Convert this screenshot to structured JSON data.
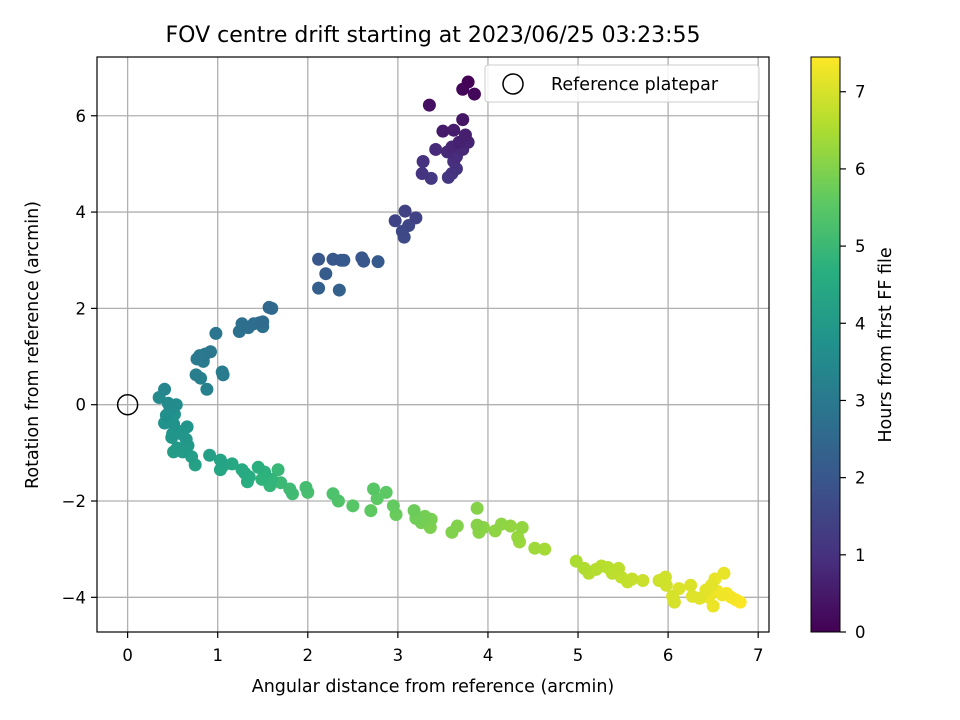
{
  "chart_data": {
    "type": "scatter",
    "title": "FOV centre drift starting at 2023/06/25 03:23:55",
    "xlabel": "Angular distance from reference (arcmin)",
    "ylabel": "Rotation from reference (arcmin)",
    "xlim": [
      -0.34,
      7.12
    ],
    "ylim": [
      -4.72,
      7.22
    ],
    "xticks": [
      0,
      1,
      2,
      3,
      4,
      5,
      6,
      7
    ],
    "yticks": [
      -4,
      -2,
      0,
      2,
      4,
      6
    ],
    "grid": true,
    "legend": {
      "position": "top-right",
      "entries": [
        "Reference platepar"
      ]
    },
    "reference_point": {
      "x": 0,
      "y": 0,
      "label": "Reference platepar"
    },
    "colorbar": {
      "label": "Hours from first FF file",
      "colormap": "viridis",
      "range": [
        0,
        7.45
      ],
      "ticks": [
        0,
        1,
        2,
        3,
        4,
        5,
        6,
        7
      ]
    },
    "points": [
      {
        "x": 3.78,
        "y": 6.7,
        "c": 0.05
      },
      {
        "x": 3.72,
        "y": 6.55,
        "c": 0.1
      },
      {
        "x": 3.85,
        "y": 6.45,
        "c": 0.15
      },
      {
        "x": 3.35,
        "y": 6.22,
        "c": 0.3
      },
      {
        "x": 3.72,
        "y": 5.92,
        "c": 0.4
      },
      {
        "x": 3.5,
        "y": 5.68,
        "c": 0.5
      },
      {
        "x": 3.62,
        "y": 5.7,
        "c": 0.55
      },
      {
        "x": 3.75,
        "y": 5.6,
        "c": 0.6
      },
      {
        "x": 3.68,
        "y": 5.45,
        "c": 0.65
      },
      {
        "x": 3.78,
        "y": 5.45,
        "c": 0.7
      },
      {
        "x": 3.6,
        "y": 5.35,
        "c": 0.75
      },
      {
        "x": 3.72,
        "y": 5.3,
        "c": 0.8
      },
      {
        "x": 3.55,
        "y": 5.25,
        "c": 0.85
      },
      {
        "x": 3.65,
        "y": 5.15,
        "c": 0.9
      },
      {
        "x": 3.42,
        "y": 5.3,
        "c": 0.85
      },
      {
        "x": 3.62,
        "y": 5.05,
        "c": 0.95
      },
      {
        "x": 3.28,
        "y": 5.05,
        "c": 1.0
      },
      {
        "x": 3.65,
        "y": 4.9,
        "c": 1.05
      },
      {
        "x": 3.6,
        "y": 4.8,
        "c": 1.1
      },
      {
        "x": 3.27,
        "y": 4.8,
        "c": 1.1
      },
      {
        "x": 3.56,
        "y": 4.72,
        "c": 1.15
      },
      {
        "x": 3.37,
        "y": 4.7,
        "c": 1.2
      },
      {
        "x": 3.08,
        "y": 4.02,
        "c": 1.4
      },
      {
        "x": 3.2,
        "y": 3.88,
        "c": 1.45
      },
      {
        "x": 2.97,
        "y": 3.82,
        "c": 1.5
      },
      {
        "x": 3.12,
        "y": 3.72,
        "c": 1.55
      },
      {
        "x": 3.05,
        "y": 3.6,
        "c": 1.6
      },
      {
        "x": 3.07,
        "y": 3.48,
        "c": 1.65
      },
      {
        "x": 2.12,
        "y": 3.02,
        "c": 2.0
      },
      {
        "x": 2.28,
        "y": 3.02,
        "c": 2.05
      },
      {
        "x": 2.37,
        "y": 3.0,
        "c": 2.1
      },
      {
        "x": 2.4,
        "y": 3.0,
        "c": 2.1
      },
      {
        "x": 2.6,
        "y": 3.05,
        "c": 2.0
      },
      {
        "x": 2.62,
        "y": 2.98,
        "c": 2.05
      },
      {
        "x": 2.78,
        "y": 2.97,
        "c": 2.1
      },
      {
        "x": 2.2,
        "y": 2.72,
        "c": 2.15
      },
      {
        "x": 2.12,
        "y": 2.42,
        "c": 2.25
      },
      {
        "x": 2.35,
        "y": 2.38,
        "c": 2.3
      },
      {
        "x": 1.57,
        "y": 2.02,
        "c": 2.5
      },
      {
        "x": 1.6,
        "y": 2.0,
        "c": 2.55
      },
      {
        "x": 1.5,
        "y": 1.72,
        "c": 2.6
      },
      {
        "x": 1.46,
        "y": 1.7,
        "c": 2.65
      },
      {
        "x": 1.4,
        "y": 1.68,
        "c": 2.65
      },
      {
        "x": 1.27,
        "y": 1.68,
        "c": 2.7
      },
      {
        "x": 1.34,
        "y": 1.6,
        "c": 2.7
      },
      {
        "x": 1.5,
        "y": 1.62,
        "c": 2.75
      },
      {
        "x": 1.24,
        "y": 1.52,
        "c": 2.8
      },
      {
        "x": 0.98,
        "y": 1.48,
        "c": 2.9
      },
      {
        "x": 0.92,
        "y": 1.1,
        "c": 2.95
      },
      {
        "x": 0.86,
        "y": 1.05,
        "c": 3.0
      },
      {
        "x": 0.8,
        "y": 1.02,
        "c": 3.0
      },
      {
        "x": 0.77,
        "y": 0.95,
        "c": 3.05
      },
      {
        "x": 0.84,
        "y": 0.9,
        "c": 3.05
      },
      {
        "x": 1.05,
        "y": 0.68,
        "c": 3.1
      },
      {
        "x": 1.06,
        "y": 0.62,
        "c": 3.1
      },
      {
        "x": 0.76,
        "y": 0.62,
        "c": 3.15
      },
      {
        "x": 0.81,
        "y": 0.55,
        "c": 3.2
      },
      {
        "x": 0.88,
        "y": 0.32,
        "c": 3.25
      },
      {
        "x": 0.41,
        "y": 0.32,
        "c": 3.4
      },
      {
        "x": 0.35,
        "y": 0.15,
        "c": 3.5
      },
      {
        "x": 0.45,
        "y": 0.03,
        "c": 3.55
      },
      {
        "x": 0.54,
        "y": 0.0,
        "c": 3.6
      },
      {
        "x": 0.47,
        "y": -0.1,
        "c": 3.65
      },
      {
        "x": 0.43,
        "y": -0.22,
        "c": 3.7
      },
      {
        "x": 0.52,
        "y": -0.2,
        "c": 3.75
      },
      {
        "x": 0.41,
        "y": -0.38,
        "c": 3.75
      },
      {
        "x": 0.51,
        "y": -0.4,
        "c": 3.8
      },
      {
        "x": 0.66,
        "y": -0.46,
        "c": 3.85
      },
      {
        "x": 0.5,
        "y": -0.6,
        "c": 3.85
      },
      {
        "x": 0.56,
        "y": -0.55,
        "c": 3.9
      },
      {
        "x": 0.61,
        "y": -0.62,
        "c": 3.9
      },
      {
        "x": 0.49,
        "y": -0.68,
        "c": 3.95
      },
      {
        "x": 0.65,
        "y": -0.72,
        "c": 3.95
      },
      {
        "x": 0.67,
        "y": -0.85,
        "c": 4.0
      },
      {
        "x": 0.55,
        "y": -0.9,
        "c": 4.0
      },
      {
        "x": 0.61,
        "y": -0.98,
        "c": 4.05
      },
      {
        "x": 0.51,
        "y": -0.98,
        "c": 4.1
      },
      {
        "x": 0.71,
        "y": -1.08,
        "c": 4.15
      },
      {
        "x": 0.91,
        "y": -1.05,
        "c": 4.2
      },
      {
        "x": 0.75,
        "y": -1.25,
        "c": 4.25
      },
      {
        "x": 1.03,
        "y": -1.15,
        "c": 4.3
      },
      {
        "x": 1.07,
        "y": -1.25,
        "c": 4.35
      },
      {
        "x": 1.03,
        "y": -1.35,
        "c": 4.4
      },
      {
        "x": 1.16,
        "y": -1.23,
        "c": 4.45
      },
      {
        "x": 1.27,
        "y": -1.35,
        "c": 4.5
      },
      {
        "x": 1.3,
        "y": -1.42,
        "c": 4.55
      },
      {
        "x": 1.35,
        "y": -1.5,
        "c": 4.6
      },
      {
        "x": 1.33,
        "y": -1.6,
        "c": 4.65
      },
      {
        "x": 1.45,
        "y": -1.3,
        "c": 4.7
      },
      {
        "x": 1.52,
        "y": -1.4,
        "c": 4.75
      },
      {
        "x": 1.49,
        "y": -1.55,
        "c": 4.8
      },
      {
        "x": 1.6,
        "y": -1.55,
        "c": 4.85
      },
      {
        "x": 1.58,
        "y": -1.68,
        "c": 4.9
      },
      {
        "x": 1.67,
        "y": -1.35,
        "c": 4.95
      },
      {
        "x": 1.7,
        "y": -1.62,
        "c": 5.0
      },
      {
        "x": 1.8,
        "y": -1.75,
        "c": 5.05
      },
      {
        "x": 1.83,
        "y": -1.85,
        "c": 5.1
      },
      {
        "x": 1.98,
        "y": -1.72,
        "c": 5.15
      },
      {
        "x": 2.0,
        "y": -1.82,
        "c": 5.2
      },
      {
        "x": 2.28,
        "y": -1.85,
        "c": 5.3
      },
      {
        "x": 2.34,
        "y": -2.0,
        "c": 5.35
      },
      {
        "x": 2.5,
        "y": -2.1,
        "c": 5.45
      },
      {
        "x": 2.73,
        "y": -1.75,
        "c": 5.5
      },
      {
        "x": 2.77,
        "y": -1.95,
        "c": 5.55
      },
      {
        "x": 2.87,
        "y": -1.82,
        "c": 5.55
      },
      {
        "x": 2.7,
        "y": -2.2,
        "c": 5.6
      },
      {
        "x": 2.95,
        "y": -2.1,
        "c": 5.65
      },
      {
        "x": 2.98,
        "y": -2.28,
        "c": 5.7
      },
      {
        "x": 3.18,
        "y": -2.2,
        "c": 5.75
      },
      {
        "x": 3.2,
        "y": -2.36,
        "c": 5.8
      },
      {
        "x": 3.3,
        "y": -2.32,
        "c": 5.85
      },
      {
        "x": 3.26,
        "y": -2.45,
        "c": 5.85
      },
      {
        "x": 3.37,
        "y": -2.38,
        "c": 5.9
      },
      {
        "x": 3.36,
        "y": -2.55,
        "c": 5.95
      },
      {
        "x": 3.6,
        "y": -2.65,
        "c": 6.0
      },
      {
        "x": 3.66,
        "y": -2.52,
        "c": 6.0
      },
      {
        "x": 3.88,
        "y": -2.15,
        "c": 6.05
      },
      {
        "x": 3.88,
        "y": -2.5,
        "c": 6.05
      },
      {
        "x": 3.95,
        "y": -2.55,
        "c": 6.1
      },
      {
        "x": 3.9,
        "y": -2.65,
        "c": 6.1
      },
      {
        "x": 4.08,
        "y": -2.62,
        "c": 6.15
      },
      {
        "x": 4.15,
        "y": -2.48,
        "c": 6.15
      },
      {
        "x": 4.25,
        "y": -2.52,
        "c": 6.2
      },
      {
        "x": 4.38,
        "y": -2.55,
        "c": 6.2
      },
      {
        "x": 4.33,
        "y": -2.75,
        "c": 6.25
      },
      {
        "x": 4.35,
        "y": -2.85,
        "c": 6.3
      },
      {
        "x": 4.52,
        "y": -2.98,
        "c": 6.35
      },
      {
        "x": 4.63,
        "y": -3.0,
        "c": 6.4
      },
      {
        "x": 4.98,
        "y": -3.25,
        "c": 6.5
      },
      {
        "x": 5.07,
        "y": -3.4,
        "c": 6.55
      },
      {
        "x": 5.12,
        "y": -3.5,
        "c": 6.6
      },
      {
        "x": 5.2,
        "y": -3.42,
        "c": 6.6
      },
      {
        "x": 5.26,
        "y": -3.35,
        "c": 6.65
      },
      {
        "x": 5.33,
        "y": -3.38,
        "c": 6.65
      },
      {
        "x": 5.38,
        "y": -3.5,
        "c": 6.7
      },
      {
        "x": 5.45,
        "y": -3.4,
        "c": 6.7
      },
      {
        "x": 5.48,
        "y": -3.58,
        "c": 6.75
      },
      {
        "x": 5.55,
        "y": -3.68,
        "c": 6.8
      },
      {
        "x": 5.6,
        "y": -3.62,
        "c": 6.8
      },
      {
        "x": 5.72,
        "y": -3.65,
        "c": 6.85
      },
      {
        "x": 5.9,
        "y": -3.65,
        "c": 6.9
      },
      {
        "x": 5.97,
        "y": -3.58,
        "c": 6.9
      },
      {
        "x": 5.98,
        "y": -3.75,
        "c": 6.95
      },
      {
        "x": 6.05,
        "y": -3.98,
        "c": 7.0
      },
      {
        "x": 6.07,
        "y": -4.1,
        "c": 7.0
      },
      {
        "x": 6.12,
        "y": -3.82,
        "c": 7.05
      },
      {
        "x": 6.25,
        "y": -3.75,
        "c": 7.05
      },
      {
        "x": 6.27,
        "y": -3.98,
        "c": 7.1
      },
      {
        "x": 6.35,
        "y": -4.02,
        "c": 7.1
      },
      {
        "x": 6.42,
        "y": -3.85,
        "c": 7.15
      },
      {
        "x": 6.48,
        "y": -3.75,
        "c": 7.15
      },
      {
        "x": 6.52,
        "y": -3.62,
        "c": 7.2
      },
      {
        "x": 6.62,
        "y": -3.5,
        "c": 7.2
      },
      {
        "x": 6.45,
        "y": -4.0,
        "c": 7.25
      },
      {
        "x": 6.5,
        "y": -4.18,
        "c": 7.25
      },
      {
        "x": 6.55,
        "y": -3.88,
        "c": 7.3
      },
      {
        "x": 6.6,
        "y": -3.95,
        "c": 7.3
      },
      {
        "x": 6.65,
        "y": -3.92,
        "c": 7.35
      },
      {
        "x": 6.7,
        "y": -4.0,
        "c": 7.35
      },
      {
        "x": 6.75,
        "y": -4.05,
        "c": 7.4
      },
      {
        "x": 6.8,
        "y": -4.1,
        "c": 7.45
      }
    ]
  }
}
